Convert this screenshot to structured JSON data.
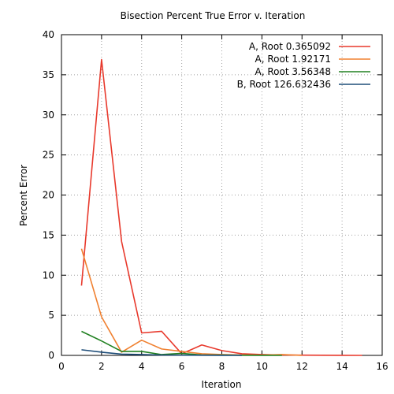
{
  "chart_data": {
    "type": "line",
    "title": "Bisection Percent True Error v. Iteration",
    "xlabel": "Iteration",
    "ylabel": "Percent Error",
    "xlim": [
      0,
      16
    ],
    "ylim": [
      0,
      40
    ],
    "xticks": [
      0,
      2,
      4,
      6,
      8,
      10,
      12,
      14,
      16
    ],
    "yticks": [
      0,
      5,
      10,
      15,
      20,
      25,
      30,
      35,
      40
    ],
    "grid": true,
    "legend_position": "top-right",
    "series": [
      {
        "name": "A, Root 0.365092",
        "color": "#e8392c",
        "x": [
          1,
          2,
          3,
          4,
          5,
          6,
          7,
          8,
          9,
          10,
          11,
          12,
          13,
          14,
          15
        ],
        "y": [
          8.7,
          36.9,
          14.2,
          2.8,
          3.0,
          0.2,
          1.3,
          0.6,
          0.2,
          0.1,
          0.05,
          0.03,
          0.02,
          0.01,
          0.0
        ]
      },
      {
        "name": "A, Root 1.92171",
        "color": "#f08030",
        "x": [
          1,
          2,
          3,
          4,
          5,
          6,
          7,
          8,
          9,
          10,
          11,
          12
        ],
        "y": [
          13.3,
          4.8,
          0.4,
          1.9,
          0.8,
          0.5,
          0.2,
          0.1,
          0.05,
          0.03,
          0.1,
          0.0
        ]
      },
      {
        "name": "A, Root 3.56348",
        "color": "#208020",
        "x": [
          1,
          2,
          3,
          4,
          5,
          6,
          7,
          8,
          9,
          10,
          11
        ],
        "y": [
          3.0,
          1.8,
          0.5,
          0.5,
          0.1,
          0.25,
          0.05,
          0.05,
          0.02,
          0.01,
          0.0
        ]
      },
      {
        "name": "B, Root 126.632436",
        "color": "#1f4e79",
        "x": [
          1,
          2,
          3,
          4,
          5,
          6,
          7,
          8,
          9
        ],
        "y": [
          0.7,
          0.4,
          0.15,
          0.1,
          0.05,
          0.03,
          0.02,
          0.01,
          0.0
        ]
      }
    ]
  }
}
